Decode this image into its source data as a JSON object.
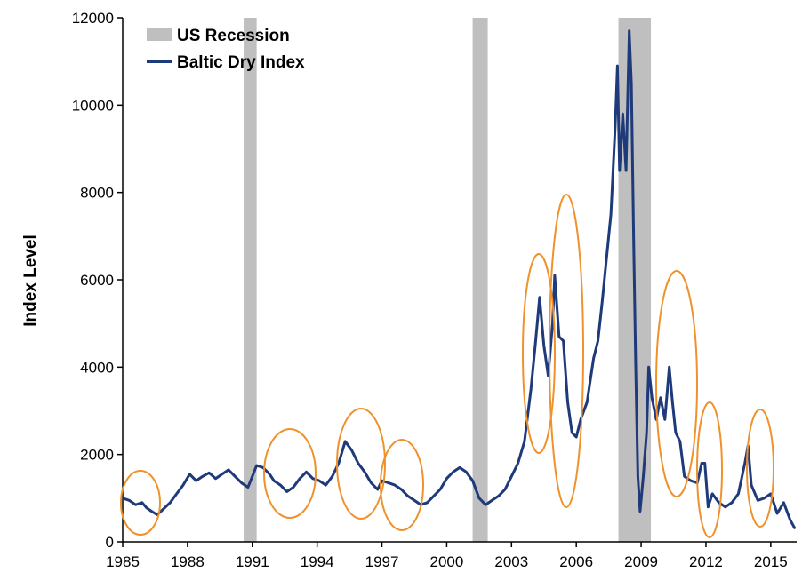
{
  "chart_data": {
    "type": "line",
    "title": "",
    "xlabel": "",
    "ylabel": "Index Level",
    "xlim": [
      1985,
      2016.2
    ],
    "ylim": [
      0,
      12000
    ],
    "x_ticks": [
      "1985",
      "1988",
      "1991",
      "1994",
      "1997",
      "2000",
      "2003",
      "2006",
      "2009",
      "2012",
      "2015"
    ],
    "y_ticks": [
      "0",
      "2000",
      "4000",
      "6000",
      "8000",
      "10000",
      "12000"
    ],
    "grid": false,
    "legend_position": "top-left",
    "legend": [
      {
        "label": "US Recession",
        "kind": "band",
        "color": "#bfbfbf"
      },
      {
        "label": "Baltic Dry Index",
        "kind": "line",
        "color": "#1f3a7a"
      }
    ],
    "recessions": [
      {
        "start": 1990.6,
        "end": 1991.2
      },
      {
        "start": 2001.2,
        "end": 2001.9
      },
      {
        "start": 2007.95,
        "end": 2009.45
      }
    ],
    "series": [
      {
        "name": "Baltic Dry Index",
        "color": "#1f3a7a",
        "points": [
          [
            1985.0,
            1000
          ],
          [
            1985.3,
            950
          ],
          [
            1985.6,
            850
          ],
          [
            1985.9,
            900
          ],
          [
            1986.1,
            780
          ],
          [
            1986.4,
            680
          ],
          [
            1986.6,
            620
          ],
          [
            1986.9,
            760
          ],
          [
            1987.2,
            900
          ],
          [
            1987.5,
            1100
          ],
          [
            1987.8,
            1300
          ],
          [
            1988.1,
            1550
          ],
          [
            1988.4,
            1400
          ],
          [
            1988.7,
            1500
          ],
          [
            1989.0,
            1580
          ],
          [
            1989.3,
            1450
          ],
          [
            1989.6,
            1550
          ],
          [
            1989.9,
            1650
          ],
          [
            1990.2,
            1500
          ],
          [
            1990.5,
            1350
          ],
          [
            1990.8,
            1250
          ],
          [
            1991.0,
            1500
          ],
          [
            1991.2,
            1750
          ],
          [
            1991.5,
            1700
          ],
          [
            1991.8,
            1550
          ],
          [
            1992.0,
            1400
          ],
          [
            1992.3,
            1300
          ],
          [
            1992.6,
            1150
          ],
          [
            1992.9,
            1250
          ],
          [
            1993.2,
            1450
          ],
          [
            1993.5,
            1600
          ],
          [
            1993.8,
            1450
          ],
          [
            1994.1,
            1400
          ],
          [
            1994.4,
            1300
          ],
          [
            1994.7,
            1500
          ],
          [
            1995.0,
            1800
          ],
          [
            1995.3,
            2300
          ],
          [
            1995.6,
            2100
          ],
          [
            1995.9,
            1800
          ],
          [
            1996.2,
            1600
          ],
          [
            1996.5,
            1350
          ],
          [
            1996.8,
            1200
          ],
          [
            1997.0,
            1400
          ],
          [
            1997.3,
            1350
          ],
          [
            1997.6,
            1300
          ],
          [
            1997.9,
            1200
          ],
          [
            1998.2,
            1050
          ],
          [
            1998.5,
            950
          ],
          [
            1998.8,
            850
          ],
          [
            1999.1,
            900
          ],
          [
            1999.4,
            1050
          ],
          [
            1999.7,
            1200
          ],
          [
            2000.0,
            1450
          ],
          [
            2000.3,
            1600
          ],
          [
            2000.6,
            1700
          ],
          [
            2000.9,
            1600
          ],
          [
            2001.2,
            1400
          ],
          [
            2001.5,
            1000
          ],
          [
            2001.8,
            850
          ],
          [
            2002.1,
            950
          ],
          [
            2002.4,
            1050
          ],
          [
            2002.7,
            1200
          ],
          [
            2003.0,
            1500
          ],
          [
            2003.3,
            1800
          ],
          [
            2003.6,
            2300
          ],
          [
            2003.9,
            3500
          ],
          [
            2004.1,
            4500
          ],
          [
            2004.3,
            5600
          ],
          [
            2004.5,
            4500
          ],
          [
            2004.7,
            3800
          ],
          [
            2004.9,
            5000
          ],
          [
            2005.0,
            6100
          ],
          [
            2005.2,
            4700
          ],
          [
            2005.4,
            4600
          ],
          [
            2005.6,
            3200
          ],
          [
            2005.8,
            2500
          ],
          [
            2006.0,
            2400
          ],
          [
            2006.2,
            2800
          ],
          [
            2006.5,
            3200
          ],
          [
            2006.8,
            4200
          ],
          [
            2007.0,
            4600
          ],
          [
            2007.2,
            5500
          ],
          [
            2007.4,
            6500
          ],
          [
            2007.6,
            7500
          ],
          [
            2007.8,
            9500
          ],
          [
            2007.9,
            10900
          ],
          [
            2008.0,
            8500
          ],
          [
            2008.15,
            9800
          ],
          [
            2008.3,
            8500
          ],
          [
            2008.45,
            11700
          ],
          [
            2008.55,
            10500
          ],
          [
            2008.65,
            7000
          ],
          [
            2008.75,
            4000
          ],
          [
            2008.85,
            1500
          ],
          [
            2008.95,
            700
          ],
          [
            2009.1,
            1500
          ],
          [
            2009.25,
            2500
          ],
          [
            2009.35,
            4000
          ],
          [
            2009.5,
            3300
          ],
          [
            2009.7,
            2800
          ],
          [
            2009.9,
            3300
          ],
          [
            2010.1,
            2800
          ],
          [
            2010.3,
            4000
          ],
          [
            2010.45,
            3200
          ],
          [
            2010.6,
            2500
          ],
          [
            2010.8,
            2300
          ],
          [
            2011.0,
            1500
          ],
          [
            2011.3,
            1400
          ],
          [
            2011.6,
            1350
          ],
          [
            2011.8,
            1800
          ],
          [
            2011.95,
            1800
          ],
          [
            2012.1,
            800
          ],
          [
            2012.3,
            1100
          ],
          [
            2012.6,
            900
          ],
          [
            2012.9,
            800
          ],
          [
            2013.2,
            900
          ],
          [
            2013.5,
            1100
          ],
          [
            2013.8,
            1800
          ],
          [
            2013.95,
            2200
          ],
          [
            2014.1,
            1300
          ],
          [
            2014.4,
            950
          ],
          [
            2014.7,
            1000
          ],
          [
            2015.0,
            1100
          ],
          [
            2015.3,
            650
          ],
          [
            2015.6,
            900
          ],
          [
            2015.9,
            500
          ],
          [
            2016.1,
            320
          ]
        ]
      }
    ]
  }
}
